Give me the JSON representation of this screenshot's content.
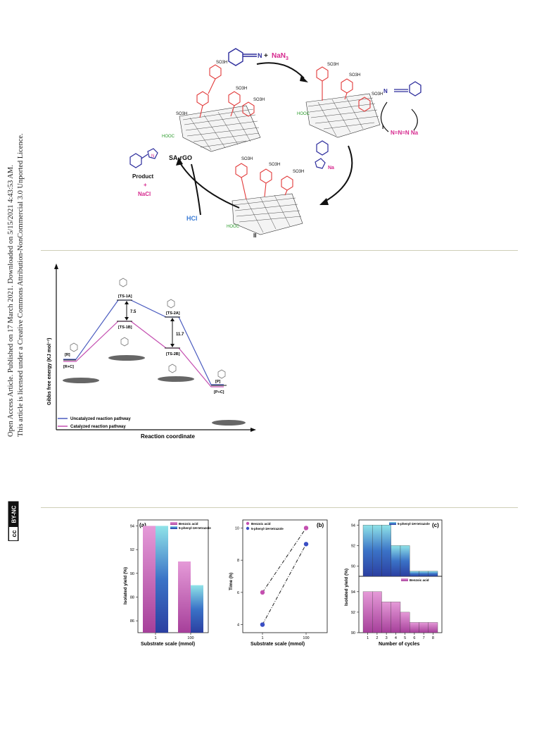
{
  "sidebar": {
    "line1": "Open Access Article. Published on 17 March 2021. Downloaded on 5/15/2021 4:43:53 AM.",
    "line2": "This article is licensed under a Creative Commons Attribution-NonCommercial 3.0 Unported Licence.",
    "license_badge": "BY-NC",
    "cc_label": "cc"
  },
  "scheme": {
    "reactant_label": "NaN",
    "reactant_sub": "3",
    "plus": "+",
    "catalyst_label": "SA-rGO",
    "hooc": "HOOC",
    "so3h": "SO3H",
    "intermediate_I": "I",
    "intermediate_II": "II",
    "azide": "N=N=N Na",
    "hcl": "HCl",
    "product_label": "Product",
    "product_plus": "+",
    "nacl": "NaCl"
  },
  "energy": {
    "ylabel": "Gibbs free energy (KJ mol⁻¹)",
    "xlabel": "Reaction coordinate",
    "labels": {
      "R": "[R]",
      "RC": "[R+C]",
      "TS1A": "[TS-1A]",
      "TS1B": "[TS-1B]",
      "TS2A": "[TS-2A]",
      "TS2B": "[TS-2B]",
      "P": "[P]",
      "PC": "[P+C]"
    },
    "gap1": "7.5",
    "gap2": "11.7",
    "legend_uncat": "Uncatalyzed reaction pathway",
    "legend_cat": "Catalyzed reaction pathway",
    "color_uncat": "#4a5bbf",
    "color_cat": "#c44fb0"
  },
  "panels": {
    "a_tag": "(a)",
    "b_tag": "(b)",
    "c_tag": "(c)",
    "legend_benzoic": "Benzoic acid",
    "legend_tetrazole": "5-phenyl-1H-tetrazole",
    "ylabel_yield": "Isolated yield (%)",
    "ylabel_time": "Time (h)",
    "xlabel_scale": "Substrate scale (mmol)",
    "xlabel_cycles": "Number of cycles"
  },
  "chart_data": [
    {
      "type": "bar",
      "title": "(a)",
      "categories": [
        "1",
        "100"
      ],
      "series": [
        {
          "name": "Benzoic acid",
          "values": [
            94,
            91
          ]
        },
        {
          "name": "5-phenyl-1H-tetrazole",
          "values": [
            94,
            89
          ]
        }
      ],
      "xlabel": "Substrate scale (mmol)",
      "ylabel": "Isolated yield (%)",
      "ylim": [
        85,
        94.5
      ],
      "yticks": [
        86,
        88,
        90,
        92,
        94
      ],
      "legend": "top-right"
    },
    {
      "type": "line",
      "title": "(b)",
      "x": [
        "1",
        "100"
      ],
      "series": [
        {
          "name": "Benzoic acid",
          "values": [
            6,
            10
          ]
        },
        {
          "name": "5-phenyl-1H-tetrazole",
          "values": [
            4,
            9
          ]
        }
      ],
      "xlabel": "Substrate scale (mmol)",
      "ylabel": "Time (h)",
      "ylim": [
        3.5,
        10.5
      ],
      "yticks": [
        4,
        6,
        8,
        10
      ],
      "legend": "top-left"
    },
    {
      "type": "bar",
      "title": "(c)",
      "categories": [
        "1",
        "2",
        "3",
        "4",
        "5",
        "6",
        "7",
        "8"
      ],
      "series": [
        {
          "name": "5-phenyl-1H-tetrazole",
          "values": [
            94,
            94,
            94,
            92,
            92,
            89.5,
            89.5,
            89.5
          ]
        },
        {
          "name": "Benzoic acid",
          "values": [
            94,
            94,
            93,
            93,
            92,
            91,
            91,
            91
          ]
        }
      ],
      "xlabel": "Number of cycles",
      "ylabel": "Isolated yield (%)",
      "top_yticks": [
        90,
        92,
        94
      ],
      "bottom_yticks": [
        90,
        92,
        94
      ],
      "legend": "top-right"
    }
  ]
}
